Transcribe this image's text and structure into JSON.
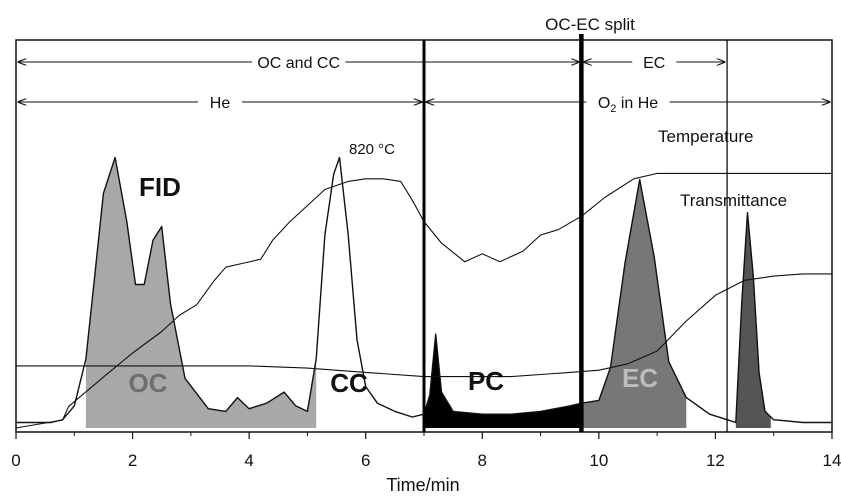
{
  "chart_data": {
    "type": "line",
    "title": "OC-EC split",
    "xlabel": "Time/min",
    "ylabel": "",
    "xlim": [
      0,
      14
    ],
    "x_ticks": [
      0,
      2,
      4,
      6,
      8,
      10,
      12,
      14
    ],
    "x_tick_labels": [
      "0",
      "2",
      "4",
      "6",
      "8",
      "10",
      "12",
      "14"
    ],
    "y_axis_labels_shown": false,
    "grid": false,
    "vertical_markers": [
      {
        "x": 7.0,
        "style": "thick"
      },
      {
        "x": 9.7,
        "style": "thick",
        "name": "OC-EC split"
      },
      {
        "x": 12.2,
        "style": "thin"
      }
    ],
    "intervals": [
      {
        "label": "OC and CC",
        "x": [
          0,
          9.7
        ]
      },
      {
        "label": "EC",
        "x": [
          9.7,
          12.2
        ]
      },
      {
        "label": "He",
        "x": [
          0,
          7.0
        ]
      },
      {
        "label": "O",
        "subscript": "2",
        "label_suffix": " in He",
        "x": [
          7.0,
          14
        ]
      }
    ],
    "series": [
      {
        "name": "Temperature",
        "note": "820 °C",
        "x": [
          0,
          0.8,
          0.9,
          1.5,
          2.0,
          2.5,
          2.8,
          3.1,
          3.4,
          3.6,
          3.8,
          4.2,
          4.4,
          4.7,
          5.0,
          5.3,
          5.7,
          6.0,
          6.3,
          6.6,
          6.8,
          7.0,
          7.3,
          7.7,
          8.0,
          8.3,
          8.7,
          9.0,
          9.3,
          9.7,
          10.1,
          10.6,
          11.0,
          11.5,
          12.0,
          12.5,
          13.0,
          14.0
        ],
        "y": [
          0.0,
          0.03,
          0.08,
          0.19,
          0.28,
          0.36,
          0.42,
          0.46,
          0.55,
          0.6,
          0.61,
          0.63,
          0.7,
          0.77,
          0.83,
          0.89,
          0.92,
          0.93,
          0.93,
          0.92,
          0.85,
          0.77,
          0.69,
          0.62,
          0.65,
          0.62,
          0.66,
          0.72,
          0.74,
          0.79,
          0.86,
          0.93,
          0.95,
          0.95,
          0.95,
          0.95,
          0.95,
          0.95
        ]
      },
      {
        "name": "Transmittance",
        "x": [
          0,
          1.0,
          2.0,
          3.0,
          4.0,
          5.0,
          6.0,
          7.0,
          7.5,
          8.0,
          8.5,
          9.0,
          9.5,
          10.0,
          10.5,
          11.0,
          11.5,
          12.0,
          12.5,
          13.0,
          13.5,
          14.0
        ],
        "y": [
          0.29,
          0.29,
          0.29,
          0.29,
          0.29,
          0.28,
          0.26,
          0.24,
          0.24,
          0.24,
          0.24,
          0.25,
          0.26,
          0.27,
          0.3,
          0.36,
          0.5,
          0.62,
          0.69,
          0.71,
          0.72,
          0.72
        ]
      },
      {
        "name": "FID",
        "x": [
          0,
          0.3,
          0.6,
          0.8,
          1.0,
          1.2,
          1.35,
          1.5,
          1.7,
          1.9,
          2.05,
          2.2,
          2.35,
          2.5,
          2.65,
          2.9,
          3.3,
          3.6,
          3.8,
          4.0,
          4.3,
          4.6,
          4.8,
          5.0,
          5.15,
          5.3,
          5.45,
          5.55,
          5.7,
          5.85,
          6.0,
          6.2,
          6.5,
          6.8,
          7.0,
          7.1,
          7.2,
          7.3,
          7.5,
          8.0,
          8.5,
          9.0,
          9.5,
          9.7,
          10.0,
          10.2,
          10.45,
          10.7,
          10.95,
          11.2,
          11.5,
          11.9,
          12.2,
          12.35,
          12.45,
          12.55,
          12.65,
          12.75,
          12.85,
          13.0,
          13.5,
          14.0
        ],
        "y": [
          0.02,
          0.02,
          0.02,
          0.03,
          0.08,
          0.25,
          0.55,
          0.85,
          0.98,
          0.75,
          0.52,
          0.52,
          0.68,
          0.73,
          0.45,
          0.18,
          0.07,
          0.06,
          0.11,
          0.07,
          0.09,
          0.13,
          0.08,
          0.06,
          0.25,
          0.7,
          0.92,
          0.98,
          0.7,
          0.32,
          0.15,
          0.09,
          0.06,
          0.04,
          0.05,
          0.12,
          0.34,
          0.13,
          0.06,
          0.05,
          0.05,
          0.06,
          0.08,
          0.09,
          0.1,
          0.22,
          0.6,
          0.9,
          0.62,
          0.24,
          0.11,
          0.05,
          0.03,
          0.02,
          0.45,
          0.78,
          0.55,
          0.2,
          0.06,
          0.03,
          0.02,
          0.02
        ]
      }
    ],
    "shaded_regions": [
      {
        "label": "OC",
        "x": [
          1.2,
          5.15
        ],
        "fill": "#a8a8a8"
      },
      {
        "label": "CC",
        "x": [
          5.15,
          7.0
        ],
        "fill": "none"
      },
      {
        "label": "PC",
        "x": [
          7.0,
          9.7
        ],
        "fill": "#000000"
      },
      {
        "label": "EC",
        "x": [
          9.7,
          11.5
        ],
        "fill": "#777777"
      },
      {
        "label": "",
        "x": [
          12.35,
          12.95
        ],
        "fill": "#555555"
      }
    ],
    "annotations": [
      {
        "text": "FID",
        "x": 2.0,
        "bold": true
      },
      {
        "text": "820 °C",
        "x": 6.0
      },
      {
        "text": "Temperature",
        "x": 12.0
      },
      {
        "text": "Transmittance",
        "x": 12.0
      },
      {
        "text": "OC",
        "x": 2.6,
        "bold": true,
        "color": "#6e6e6e"
      },
      {
        "text": "CC",
        "x": 5.7,
        "bold": true
      },
      {
        "text": "PC",
        "x": 8.2,
        "bold": true
      },
      {
        "text": "EC",
        "x": 10.7,
        "bold": true,
        "color": "#bdbdbd"
      }
    ]
  }
}
